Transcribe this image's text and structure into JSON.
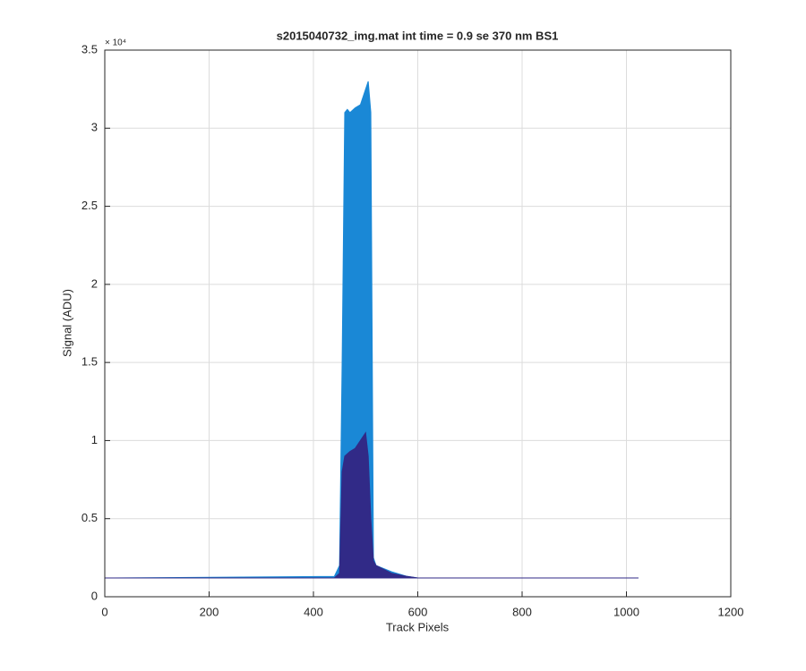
{
  "chart_data": {
    "type": "line",
    "title": "s2015040732_img.mat int time = 0.9 se  370 nm BS1",
    "x_label": "Track Pixels",
    "y_label": "Signal (ADU)",
    "y_multiplier": "× 10⁴",
    "xlim": [
      0,
      1200
    ],
    "xticks": [
      0,
      200,
      400,
      600,
      800,
      1000,
      1200
    ],
    "ylim": [
      0,
      35000
    ],
    "yticks": [
      {
        "value": 0,
        "label": "0"
      },
      {
        "value": 5000,
        "label": "0.5"
      },
      {
        "value": 10000,
        "label": "1"
      },
      {
        "value": 15000,
        "label": "1.5"
      },
      {
        "value": 20000,
        "label": "2"
      },
      {
        "value": 25000,
        "label": "2.5"
      },
      {
        "value": 30000,
        "label": "3"
      },
      {
        "value": 35000,
        "label": "3.5"
      }
    ],
    "grid": true,
    "series": [
      {
        "color": "#1a88d6",
        "x": [
          0,
          440,
          450,
          455,
          460,
          465,
          470,
          480,
          490,
          500,
          505,
          510,
          515,
          520,
          550,
          580,
          600,
          1023
        ],
        "values": [
          1200,
          1300,
          2000,
          15000,
          31000,
          31200,
          31000,
          31300,
          31500,
          32500,
          33000,
          31000,
          2500,
          2000,
          1600,
          1300,
          1200,
          1200
        ]
      },
      {
        "color": "#312a87",
        "x": [
          0,
          440,
          450,
          455,
          460,
          470,
          480,
          490,
          500,
          505,
          510,
          515,
          520,
          550,
          580,
          600,
          1023
        ],
        "values": [
          1200,
          1200,
          1500,
          8000,
          9000,
          9300,
          9500,
          10000,
          10500,
          9000,
          5000,
          2300,
          2000,
          1500,
          1300,
          1200,
          1200
        ]
      }
    ]
  }
}
